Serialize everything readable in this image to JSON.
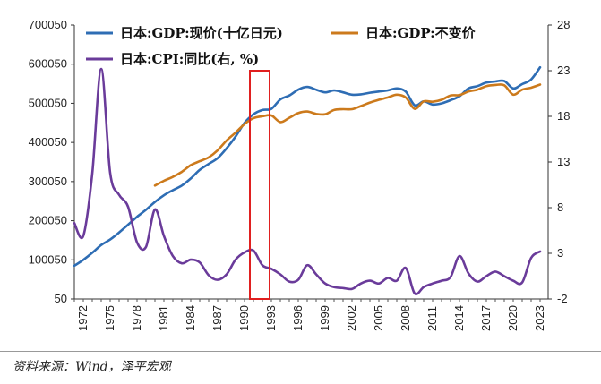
{
  "chart_data": {
    "type": "line",
    "title": "",
    "xlabel": "",
    "ylabel": "",
    "x_ticks": [
      "1972",
      "1975",
      "1978",
      "1981",
      "1984",
      "1987",
      "1990",
      "1993",
      "1996",
      "1999",
      "2002",
      "2005",
      "2008",
      "2011",
      "2014",
      "2017",
      "2020",
      "2023"
    ],
    "y_left": {
      "ylim": [
        50,
        700050
      ],
      "ticks": [
        "50",
        "100050",
        "200050",
        "300050",
        "400050",
        "500050",
        "600050",
        "700050"
      ]
    },
    "y_right": {
      "ylim": [
        -2,
        28
      ],
      "ticks": [
        "-2",
        "3",
        "8",
        "13",
        "18",
        "23",
        "28"
      ]
    },
    "highlight": {
      "x_range": [
        1990.6,
        1992.8
      ],
      "color": "#e02020"
    },
    "series": [
      {
        "name": "日本:GDP:现价(十亿日元)",
        "axis": "left",
        "color": "#2e6db4",
        "x": [
          1971,
          1972,
          1973,
          1974,
          1975,
          1976,
          1977,
          1978,
          1979,
          1980,
          1981,
          1982,
          1983,
          1984,
          1985,
          1986,
          1987,
          1988,
          1989,
          1990,
          1991,
          1992,
          1993,
          1994,
          1995,
          1996,
          1997,
          1998,
          1999,
          2000,
          2001,
          2002,
          2003,
          2004,
          2005,
          2006,
          2007,
          2008,
          2009,
          2010,
          2011,
          2012,
          2013,
          2014,
          2015,
          2016,
          2017,
          2018,
          2019,
          2020,
          2021,
          2022,
          2023
        ],
        "values": [
          85000,
          100000,
          118000,
          138000,
          152000,
          170000,
          190000,
          210000,
          228000,
          248000,
          265000,
          278000,
          290000,
          308000,
          330000,
          345000,
          360000,
          385000,
          415000,
          450000,
          472000,
          483000,
          486000,
          510000,
          520000,
          535000,
          542000,
          535000,
          528000,
          533000,
          528000,
          522000,
          523000,
          527000,
          530000,
          533000,
          538000,
          530000,
          495000,
          505000,
          497000,
          500000,
          508000,
          518000,
          538000,
          544000,
          553000,
          556000,
          557000,
          538000,
          549000,
          561000,
          592000
        ]
      },
      {
        "name": "日本:GDP:不变价",
        "axis": "left",
        "color": "#cc7a1c",
        "x": [
          1980,
          1981,
          1982,
          1983,
          1984,
          1985,
          1986,
          1987,
          1988,
          1989,
          1990,
          1991,
          1992,
          1993,
          1994,
          1995,
          1996,
          1997,
          1998,
          1999,
          2000,
          2001,
          2002,
          2003,
          2004,
          2005,
          2006,
          2007,
          2008,
          2009,
          2010,
          2011,
          2012,
          2013,
          2014,
          2015,
          2016,
          2017,
          2018,
          2019,
          2020,
          2021,
          2022,
          2023
        ],
        "values": [
          290000,
          302000,
          312000,
          325000,
          342000,
          352000,
          362000,
          380000,
          405000,
          425000,
          447000,
          462000,
          467000,
          469000,
          452000,
          463000,
          475000,
          479000,
          473000,
          472000,
          483000,
          485000,
          485000,
          493000,
          502000,
          509000,
          515000,
          522000,
          515000,
          486000,
          505000,
          504000,
          509000,
          520000,
          521000,
          530000,
          535000,
          544000,
          547000,
          546000,
          522000,
          535000,
          540000,
          548000
        ]
      },
      {
        "name": "日本:CPI:同比(右, %)",
        "axis": "right",
        "color": "#6a3b9a",
        "x": [
          1971,
          1972,
          1973,
          1974,
          1975,
          1976,
          1977,
          1978,
          1979,
          1980,
          1981,
          1982,
          1983,
          1984,
          1985,
          1986,
          1987,
          1988,
          1989,
          1990,
          1991,
          1992,
          1993,
          1994,
          1995,
          1996,
          1997,
          1998,
          1999,
          2000,
          2001,
          2002,
          2003,
          2004,
          2005,
          2006,
          2007,
          2008,
          2009,
          2010,
          2011,
          2012,
          2013,
          2014,
          2015,
          2016,
          2017,
          2018,
          2019,
          2020,
          2021,
          2022,
          2023
        ],
        "values": [
          6.3,
          4.9,
          11.7,
          23.2,
          11.8,
          9.4,
          8.1,
          4.2,
          3.7,
          7.8,
          4.9,
          2.7,
          1.9,
          2.3,
          2.0,
          0.6,
          0.1,
          0.7,
          2.3,
          3.1,
          3.3,
          1.7,
          1.3,
          0.7,
          -0.1,
          0.1,
          1.7,
          0.7,
          -0.3,
          -0.7,
          -0.8,
          -0.9,
          -0.3,
          0.0,
          -0.3,
          0.3,
          0.0,
          1.4,
          -1.4,
          -0.7,
          -0.3,
          0.0,
          0.4,
          2.7,
          0.8,
          -0.1,
          0.5,
          1.0,
          0.5,
          0.0,
          -0.2,
          2.5,
          3.2
        ]
      }
    ],
    "legend_placement": "top"
  },
  "source_text": "资料来源：Wind，泽平宏观"
}
